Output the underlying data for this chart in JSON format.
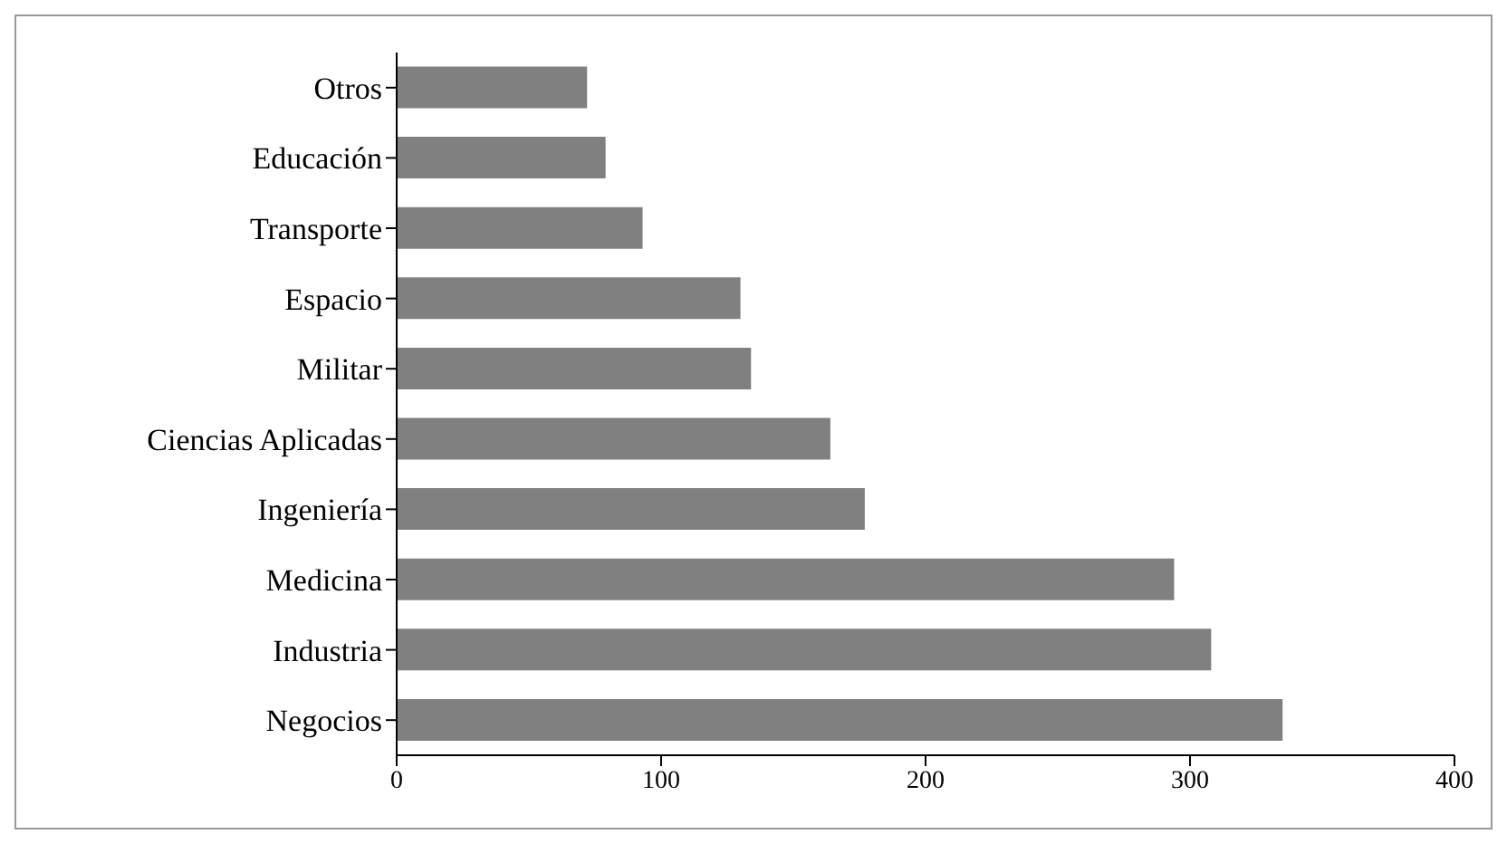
{
  "chart_data": {
    "type": "bar",
    "orientation": "horizontal",
    "categories": [
      "Otros",
      "Educación",
      "Transporte",
      "Espacio",
      "Militar",
      "Ciencias Aplicadas",
      "Ingeniería",
      "Medicina",
      "Industria",
      "Negocios"
    ],
    "values": [
      72,
      79,
      93,
      130,
      134,
      164,
      177,
      294,
      308,
      335
    ],
    "color": "#808080",
    "xlim": [
      0,
      400
    ],
    "xticks": [
      0,
      100,
      200,
      300,
      400
    ],
    "grid": false,
    "legend": false
  }
}
